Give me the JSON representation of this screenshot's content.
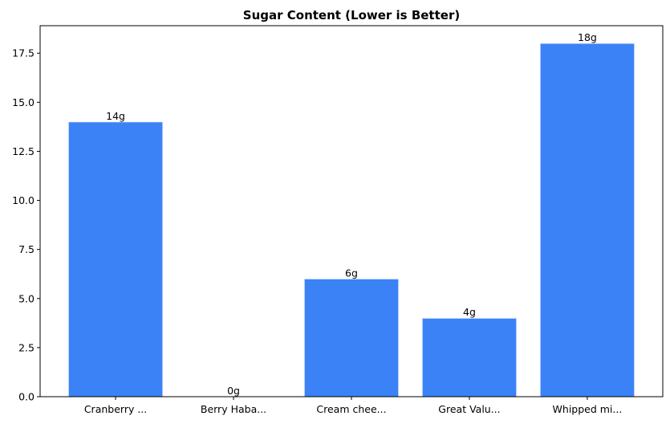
{
  "chart_data": {
    "type": "bar",
    "title": "Sugar Content (Lower is Better)",
    "xlabel": "",
    "ylabel": "",
    "categories": [
      "Cranberry ...",
      "Berry Haba...",
      "Cream chee...",
      "Great Valu...",
      "Whipped mi..."
    ],
    "values": [
      14,
      0,
      6,
      4,
      18
    ],
    "data_labels": [
      "14g",
      "0g",
      "6g",
      "4g",
      "18g"
    ],
    "ylim": [
      0,
      18.9
    ],
    "yticks": [
      0,
      2.5,
      5,
      7.5,
      10,
      12.5,
      15,
      17.5
    ],
    "ytick_labels": [
      "0.0",
      "2.5",
      "5.0",
      "7.5",
      "10.0",
      "12.5",
      "15.0",
      "17.5"
    ],
    "bar_color": "#3b82f6",
    "grid": false
  }
}
